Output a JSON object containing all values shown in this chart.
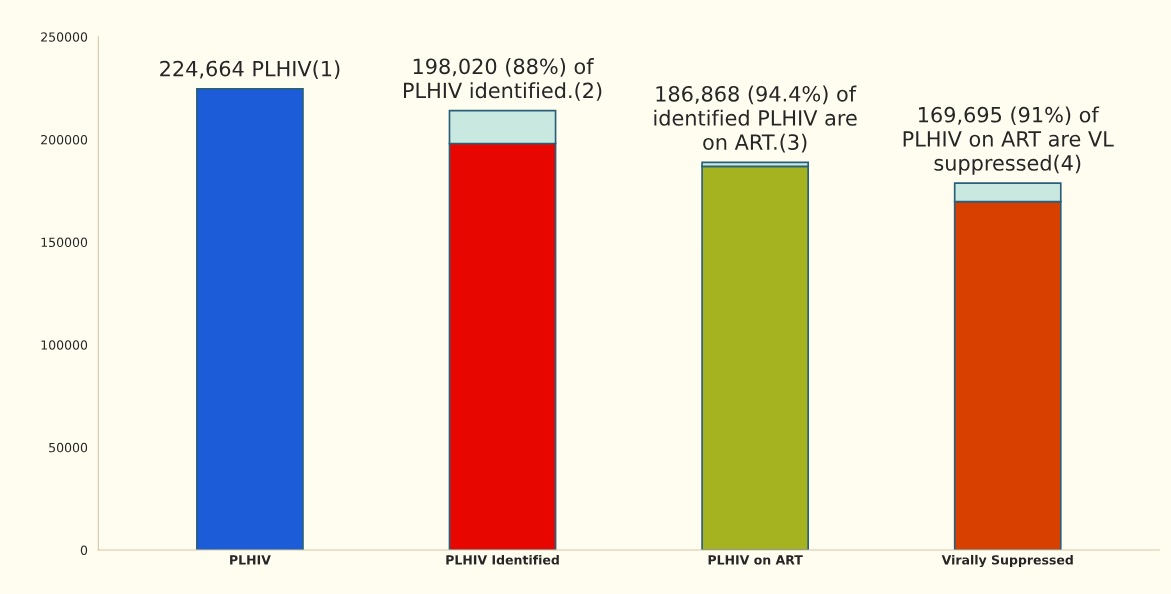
{
  "chart_data": {
    "type": "bar",
    "stacked": true,
    "categories": [
      "PLHIV",
      "PLHIV Identified",
      "PLHIV on ART",
      "Virally Suppressed"
    ],
    "series": [
      {
        "colors": [
          "#1c5cd8",
          "#e80600",
          "#a5b321",
          "#d84000"
        ],
        "values": [
          224664,
          198020,
          186868,
          169695
        ],
        "value_labels": [
          "224,664 PLHIV(1)",
          "198,020 (88%) of\nPLHIV identified.(2)",
          "186,868 (94.4%) of\nidentified PLHIV are\non ART.(3)",
          "169,695 (91%) of\nPLHIV on ART are VL\nsuppressed(4)"
        ]
      },
      {
        "color": "#c8e8e0",
        "values": [
          null,
          16000,
          2000,
          9000
        ]
      }
    ],
    "ylim": [
      0,
      250000
    ],
    "yticks": [
      0,
      50000,
      100000,
      150000,
      200000,
      250000
    ],
    "grid": false,
    "legend": false
  }
}
